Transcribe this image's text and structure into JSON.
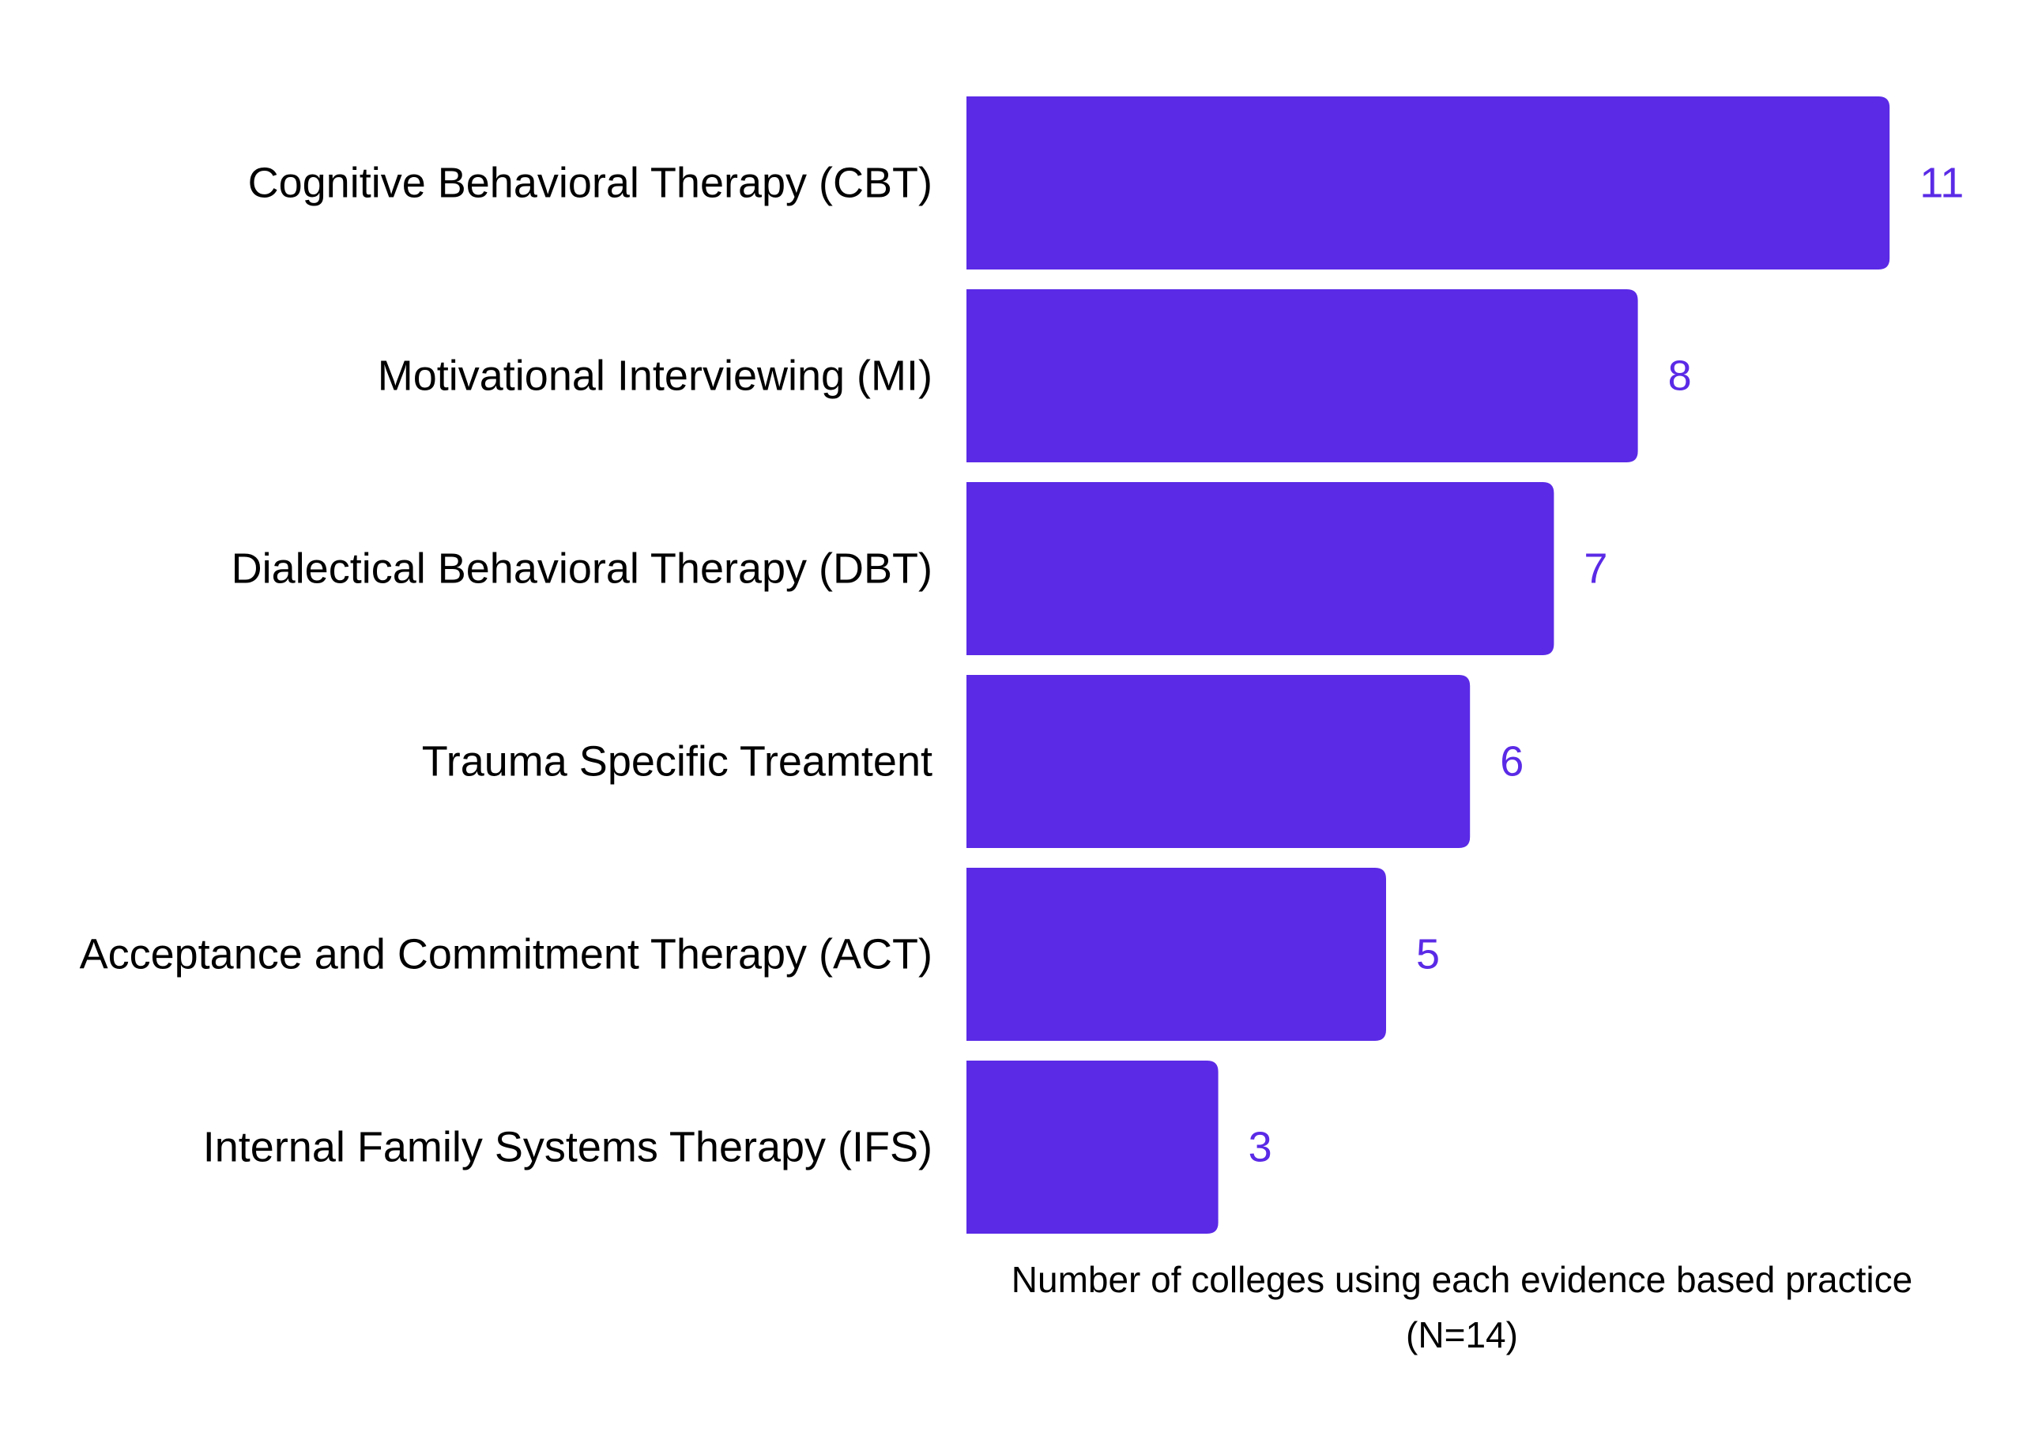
{
  "chart_data": {
    "type": "bar",
    "orientation": "horizontal",
    "categories": [
      "Cognitive Behavioral Therapy (CBT)",
      "Motivational Interviewing (MI)",
      "Dialectical Behavioral Therapy (DBT)",
      "Trauma Specific Treamtent",
      "Acceptance and Commitment Therapy (ACT)",
      "Internal Family Systems Therapy (IFS)"
    ],
    "values": [
      11,
      8,
      7,
      6,
      5,
      3
    ],
    "value_labels": [
      "11",
      "8",
      "7",
      "6",
      "5",
      "3"
    ],
    "title": "",
    "xlabel": [
      "Number of colleges using each evidence based practice",
      "(N=14)"
    ],
    "ylabel": "",
    "xlim": [
      0,
      11
    ],
    "grid": false,
    "legend": "none",
    "bar_color": "#5A2AE6",
    "value_label_color": "#5A2AE6"
  }
}
